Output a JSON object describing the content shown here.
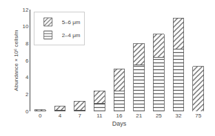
{
  "chart_data": {
    "type": "bar",
    "stacked": true,
    "xlabel": "Days",
    "ylabel": "Abundance × 10⁶ cells/m",
    "categories": [
      "0",
      "4",
      "7",
      "11",
      "16",
      "21",
      "25",
      "32",
      "75"
    ],
    "series": [
      {
        "name": "2–4 μm",
        "color": "#e0e0e0",
        "values": [
          0.05,
          0.15,
          0.1,
          0.9,
          2.4,
          5.5,
          6.4,
          7.3,
          0.0
        ]
      },
      {
        "name": "5–6 μm",
        "color": "#ffffff",
        "values": [
          0.15,
          0.45,
          1.1,
          1.5,
          2.6,
          2.5,
          2.7,
          3.7,
          5.3
        ]
      }
    ],
    "ylim": [
      0,
      12
    ],
    "yticks": [
      0,
      2,
      4,
      6,
      8,
      10,
      12
    ],
    "grid": false,
    "legend": "upper left"
  }
}
